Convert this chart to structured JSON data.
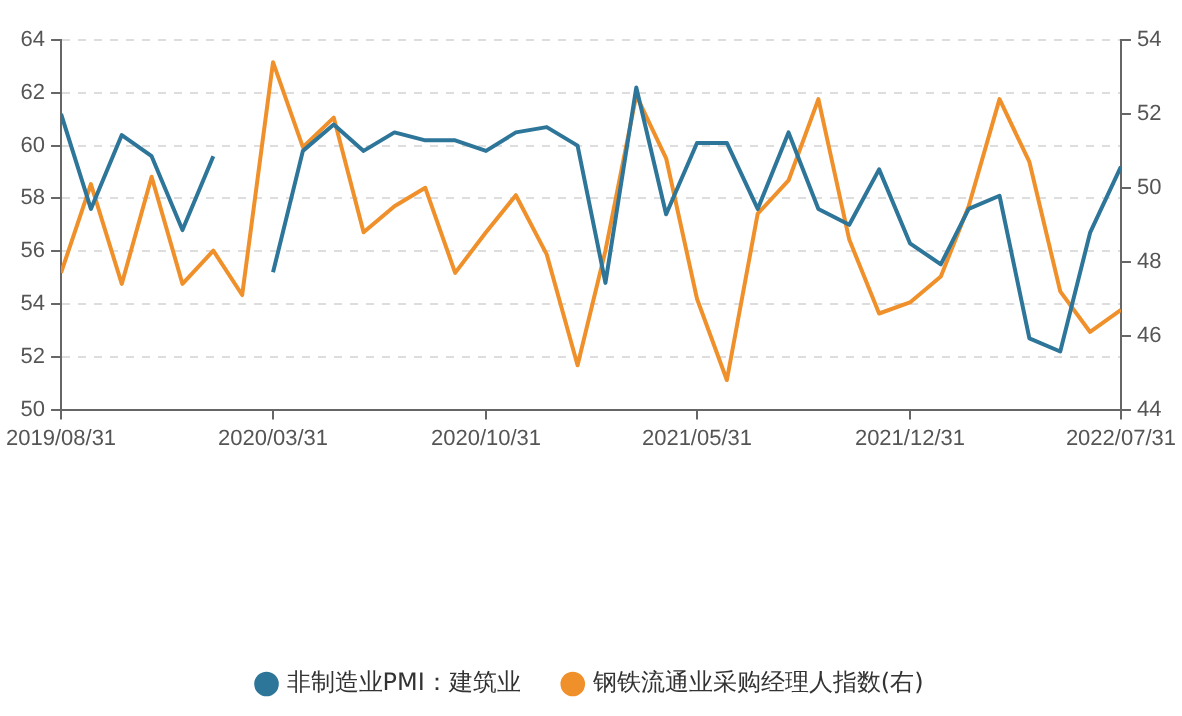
{
  "chart_data": {
    "type": "line",
    "x": [
      "2019-08-31",
      "2019-09-30",
      "2019-10-31",
      "2019-11-30",
      "2019-12-31",
      "2020-01-31",
      "2020-02-29",
      "2020-03-31",
      "2020-04-30",
      "2020-05-31",
      "2020-06-30",
      "2020-07-31",
      "2020-08-31",
      "2020-09-30",
      "2020-10-31",
      "2020-11-30",
      "2020-12-31",
      "2021-01-31",
      "2021-02-28",
      "2021-03-31",
      "2021-04-30",
      "2021-05-31",
      "2021-06-30",
      "2021-07-31",
      "2021-08-31",
      "2021-09-30",
      "2021-10-31",
      "2021-11-30",
      "2021-12-31",
      "2022-01-31",
      "2022-02-28",
      "2022-03-31",
      "2022-04-30",
      "2022-05-31",
      "2022-06-30",
      "2022-07-31"
    ],
    "series": [
      {
        "name": "非制造业PMI：建筑业",
        "color": "#2e7699",
        "values": [
          61.2,
          57.6,
          60.4,
          59.6,
          56.8,
          59.6,
          null,
          55.2,
          59.8,
          60.8,
          59.8,
          60.5,
          60.2,
          60.2,
          59.8,
          60.5,
          60.7,
          60.0,
          54.8,
          62.2,
          57.4,
          60.1,
          60.1,
          57.6,
          60.5,
          57.6,
          57.0,
          59.1,
          56.3,
          55.5,
          57.6,
          58.1,
          52.7,
          52.2,
          56.7,
          59.2
        ]
      },
      {
        "name": "钢铁流通业采购经理人指数(右)",
        "color": "#f0902a",
        "axis": "y2",
        "values": [
          47.7,
          50.1,
          47.4,
          50.3,
          47.4,
          48.3,
          47.1,
          53.4,
          51.1,
          51.9,
          48.8,
          49.5,
          50.0,
          47.7,
          48.8,
          49.8,
          48.2,
          45.2,
          48.3,
          52.5,
          50.8,
          47.0,
          44.8,
          49.3,
          50.2,
          52.4,
          48.6,
          46.6,
          46.9,
          47.6,
          49.5,
          52.4,
          50.7,
          47.2,
          46.1,
          46.7
        ]
      }
    ],
    "xlim": [
      "2019-08-31",
      "2022-07-31"
    ],
    "xticks": [
      {
        "value": "2019-08-31",
        "label": "2019/08/31"
      },
      {
        "value": "2020-03-31",
        "label": "2020/03/31"
      },
      {
        "value": "2020-10-31",
        "label": "2020/10/31"
      },
      {
        "value": "2021-05-31",
        "label": "2021/05/31"
      },
      {
        "value": "2021-12-31",
        "label": "2021/12/31"
      },
      {
        "value": "2022-07-31",
        "label": "2022/07/31"
      }
    ],
    "ylim": [
      50,
      64
    ],
    "yticks": [
      50,
      52,
      54,
      56,
      58,
      60,
      62,
      64
    ],
    "y2lim": [
      44,
      54
    ],
    "y2ticks": [
      44,
      46,
      48,
      50,
      52,
      54
    ],
    "grid": "y",
    "legend": "bottom",
    "marker": "none",
    "line_style": "solid"
  }
}
